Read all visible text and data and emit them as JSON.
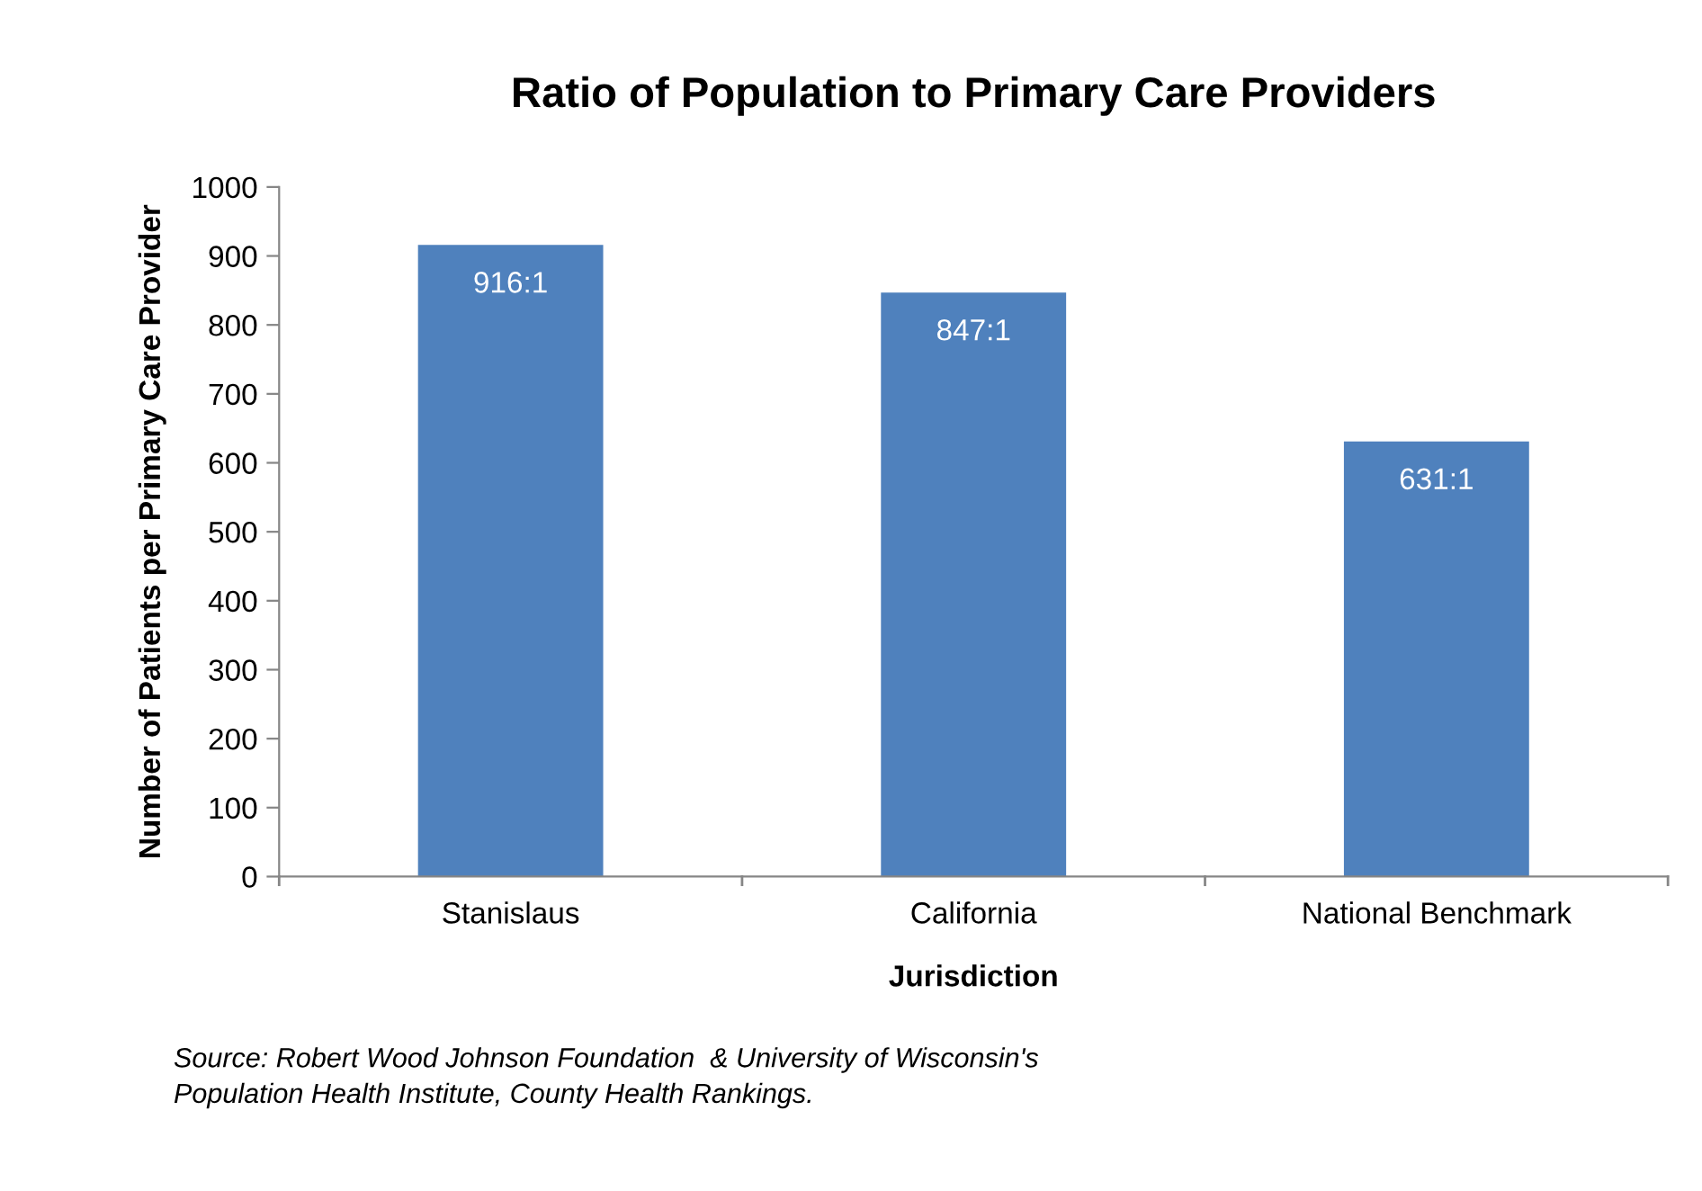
{
  "chart_data": {
    "type": "bar",
    "title": "Ratio of Population to Primary Care Providers",
    "xlabel": "Jurisdiction",
    "ylabel": "Number of Patients per Primary Care Provider",
    "categories": [
      "Stanislaus",
      "California",
      "National Benchmark"
    ],
    "values": [
      916,
      847,
      631
    ],
    "value_labels": [
      "916:1",
      "847:1",
      "631:1"
    ],
    "color": "#4f81bd",
    "ylim": [
      0,
      1000
    ],
    "yticks": [
      0,
      100,
      200,
      300,
      400,
      500,
      600,
      700,
      800,
      900,
      1000
    ],
    "grid": false,
    "legend": false,
    "annotations": [
      "Source: Robert Wood Johnson Foundation  & University of Wisconsin's\nPopulation Health Institute, County Health Rankings."
    ]
  }
}
